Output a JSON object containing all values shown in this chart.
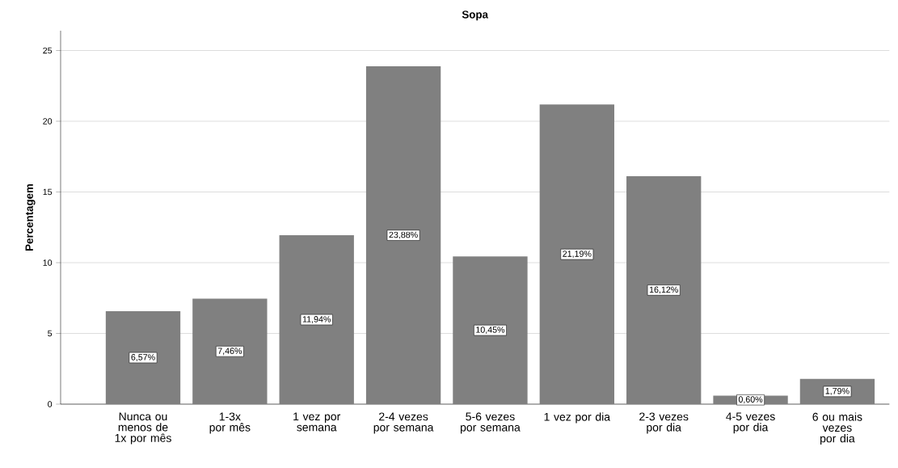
{
  "chart_data": {
    "type": "bar",
    "title": "Sopa",
    "ylabel": "Percentagem",
    "categories": [
      "Nunca ou menos de 1x por mês",
      "1-3x por mês",
      "1 vez por semana",
      "2-4 vezes por semana",
      "5-6 vezes por semana",
      "1 vez por dia",
      "2-3 vezes por dia",
      "4-5 vezes por dia",
      "6 ou mais vezes por dia"
    ],
    "values": [
      6.57,
      7.46,
      11.94,
      23.88,
      10.45,
      21.19,
      16.12,
      0.6,
      1.79
    ],
    "value_labels": [
      "6,57%",
      "7,46%",
      "11,94%",
      "23,88%",
      "10,45%",
      "21,19%",
      "16,12%",
      "0,60%",
      "1,79%"
    ],
    "color": "#808080",
    "ylim": [
      0,
      26.4
    ],
    "yticks": [
      0,
      5,
      10,
      15,
      20,
      25
    ],
    "grid": "y"
  }
}
